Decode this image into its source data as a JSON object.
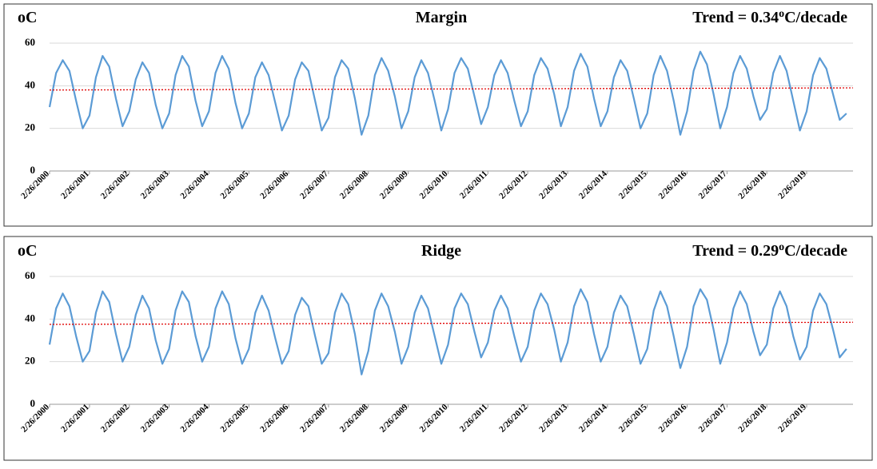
{
  "chart_data": [
    {
      "type": "line",
      "title": "Margin",
      "y_label": "oC",
      "annotation": [
        "Trend = 0.34",
        "o",
        "C/decade"
      ],
      "x": [
        "2/26/2000",
        "4/26/2000",
        "6/26/2000",
        "8/26/2000",
        "10/26/2000",
        "12/26/2000",
        "2/26/2001",
        "4/26/2001",
        "6/26/2001",
        "8/26/2001",
        "10/26/2001",
        "12/26/2001",
        "2/26/2002",
        "4/26/2002",
        "6/26/2002",
        "8/26/2002",
        "10/26/2002",
        "12/26/2002",
        "2/26/2003",
        "4/26/2003",
        "6/26/2003",
        "8/26/2003",
        "10/26/2003",
        "12/26/2003",
        "2/26/2004",
        "4/26/2004",
        "6/26/2004",
        "8/26/2004",
        "10/26/2004",
        "12/26/2004",
        "2/26/2005",
        "4/26/2005",
        "6/26/2005",
        "8/26/2005",
        "10/26/2005",
        "12/26/2005",
        "2/26/2006",
        "4/26/2006",
        "6/26/2006",
        "8/26/2006",
        "10/26/2006",
        "12/26/2006",
        "2/26/2007",
        "4/26/2007",
        "6/26/2007",
        "8/26/2007",
        "10/26/2007",
        "12/26/2007",
        "2/26/2008",
        "4/26/2008",
        "6/26/2008",
        "8/26/2008",
        "10/26/2008",
        "12/26/2008",
        "2/26/2009",
        "4/26/2009",
        "6/26/2009",
        "8/26/2009",
        "10/26/2009",
        "12/26/2009",
        "2/26/2010",
        "4/26/2010",
        "6/26/2010",
        "8/26/2010",
        "10/26/2010",
        "12/26/2010",
        "2/26/2011",
        "4/26/2011",
        "6/26/2011",
        "8/26/2011",
        "10/26/2011",
        "12/26/2011",
        "2/26/2012",
        "4/26/2012",
        "6/26/2012",
        "8/26/2012",
        "10/26/2012",
        "12/26/2012",
        "2/26/2013",
        "4/26/2013",
        "6/26/2013",
        "8/26/2013",
        "10/26/2013",
        "12/26/2013",
        "2/26/2014",
        "4/26/2014",
        "6/26/2014",
        "8/26/2014",
        "10/26/2014",
        "12/26/2014",
        "2/26/2015",
        "4/26/2015",
        "6/26/2015",
        "8/26/2015",
        "10/26/2015",
        "12/26/2015",
        "2/26/2016",
        "4/26/2016",
        "6/26/2016",
        "8/26/2016",
        "10/26/2016",
        "12/26/2016",
        "2/26/2017",
        "4/26/2017",
        "6/26/2017",
        "8/26/2017",
        "10/26/2017",
        "12/26/2017",
        "2/26/2018",
        "4/26/2018",
        "6/26/2018",
        "8/26/2018",
        "10/26/2018",
        "12/26/2018",
        "2/26/2019",
        "4/26/2019",
        "6/26/2019",
        "8/26/2019",
        "10/26/2019",
        "12/26/2019",
        "2/26/2020"
      ],
      "series": [
        {
          "color": "#5b9bd5",
          "values": [
            30,
            46,
            52,
            47,
            33,
            20,
            26,
            44,
            54,
            49,
            34,
            21,
            28,
            43,
            51,
            46,
            31,
            20,
            27,
            45,
            54,
            49,
            33,
            21,
            28,
            46,
            54,
            48,
            32,
            20,
            27,
            44,
            51,
            45,
            32,
            19,
            26,
            43,
            51,
            47,
            33,
            19,
            25,
            44,
            52,
            48,
            34,
            17,
            26,
            45,
            53,
            47,
            35,
            20,
            28,
            44,
            52,
            46,
            33,
            19,
            29,
            46,
            53,
            48,
            35,
            22,
            30,
            45,
            52,
            46,
            33,
            21,
            28,
            45,
            53,
            48,
            36,
            21,
            30,
            47,
            55,
            49,
            34,
            21,
            28,
            44,
            52,
            47,
            34,
            20,
            27,
            45,
            54,
            47,
            33,
            17,
            28,
            47,
            56,
            50,
            36,
            20,
            30,
            46,
            54,
            48,
            35,
            24,
            29,
            46,
            54,
            47,
            33,
            19,
            28,
            45,
            53,
            48,
            36,
            24,
            27
          ]
        }
      ],
      "trend": {
        "color": "#e00000",
        "values": [
          38,
          39
        ]
      },
      "xlim": [
        "2/26/2000",
        "4/26/2020"
      ],
      "xticks": [
        "2/26/2000",
        "2/26/2001",
        "2/26/2002",
        "2/26/2003",
        "2/26/2004",
        "2/26/2005",
        "2/26/2006",
        "2/26/2007",
        "2/26/2008",
        "2/26/2009",
        "2/26/2010",
        "2/26/2011",
        "2/26/2012",
        "2/26/2013",
        "2/26/2014",
        "2/26/2015",
        "2/26/2016",
        "2/26/2017",
        "2/26/2018",
        "2/26/2019"
      ],
      "ylim": [
        0,
        60
      ],
      "yticks": [
        0,
        20,
        40,
        60
      ],
      "grid": true
    },
    {
      "type": "line",
      "title": "Ridge",
      "y_label": "oC",
      "annotation": [
        "Trend = 0.29",
        "o",
        "C/decade"
      ],
      "x": [
        "2/26/2000",
        "4/26/2000",
        "6/26/2000",
        "8/26/2000",
        "10/26/2000",
        "12/26/2000",
        "2/26/2001",
        "4/26/2001",
        "6/26/2001",
        "8/26/2001",
        "10/26/2001",
        "12/26/2001",
        "2/26/2002",
        "4/26/2002",
        "6/26/2002",
        "8/26/2002",
        "10/26/2002",
        "12/26/2002",
        "2/26/2003",
        "4/26/2003",
        "6/26/2003",
        "8/26/2003",
        "10/26/2003",
        "12/26/2003",
        "2/26/2004",
        "4/26/2004",
        "6/26/2004",
        "8/26/2004",
        "10/26/2004",
        "12/26/2004",
        "2/26/2005",
        "4/26/2005",
        "6/26/2005",
        "8/26/2005",
        "10/26/2005",
        "12/26/2005",
        "2/26/2006",
        "4/26/2006",
        "6/26/2006",
        "8/26/2006",
        "10/26/2006",
        "12/26/2006",
        "2/26/2007",
        "4/26/2007",
        "6/26/2007",
        "8/26/2007",
        "10/26/2007",
        "12/26/2007",
        "2/26/2008",
        "4/26/2008",
        "6/26/2008",
        "8/26/2008",
        "10/26/2008",
        "12/26/2008",
        "2/26/2009",
        "4/26/2009",
        "6/26/2009",
        "8/26/2009",
        "10/26/2009",
        "12/26/2009",
        "2/26/2010",
        "4/26/2010",
        "6/26/2010",
        "8/26/2010",
        "10/26/2010",
        "12/26/2010",
        "2/26/2011",
        "4/26/2011",
        "6/26/2011",
        "8/26/2011",
        "10/26/2011",
        "12/26/2011",
        "2/26/2012",
        "4/26/2012",
        "6/26/2012",
        "8/26/2012",
        "10/26/2012",
        "12/26/2012",
        "2/26/2013",
        "4/26/2013",
        "6/26/2013",
        "8/26/2013",
        "10/26/2013",
        "12/26/2013",
        "2/26/2014",
        "4/26/2014",
        "6/26/2014",
        "8/26/2014",
        "10/26/2014",
        "12/26/2014",
        "2/26/2015",
        "4/26/2015",
        "6/26/2015",
        "8/26/2015",
        "10/26/2015",
        "12/26/2015",
        "2/26/2016",
        "4/26/2016",
        "6/26/2016",
        "8/26/2016",
        "10/26/2016",
        "12/26/2016",
        "2/26/2017",
        "4/26/2017",
        "6/26/2017",
        "8/26/2017",
        "10/26/2017",
        "12/26/2017",
        "2/26/2018",
        "4/26/2018",
        "6/26/2018",
        "8/26/2018",
        "10/26/2018",
        "12/26/2018",
        "2/26/2019",
        "4/26/2019",
        "6/26/2019",
        "8/26/2019",
        "10/26/2019",
        "12/26/2019",
        "2/26/2020"
      ],
      "series": [
        {
          "color": "#5b9bd5",
          "values": [
            28,
            45,
            52,
            46,
            32,
            20,
            25,
            43,
            53,
            48,
            33,
            20,
            27,
            42,
            51,
            45,
            30,
            19,
            26,
            44,
            53,
            48,
            32,
            20,
            27,
            45,
            53,
            47,
            31,
            19,
            26,
            43,
            51,
            44,
            31,
            19,
            25,
            42,
            50,
            46,
            32,
            19,
            24,
            43,
            52,
            47,
            33,
            14,
            25,
            44,
            52,
            46,
            34,
            19,
            27,
            43,
            51,
            45,
            32,
            19,
            28,
            45,
            52,
            47,
            34,
            22,
            29,
            44,
            51,
            45,
            32,
            20,
            27,
            44,
            52,
            47,
            35,
            20,
            29,
            46,
            54,
            48,
            33,
            20,
            27,
            43,
            51,
            46,
            33,
            19,
            26,
            44,
            53,
            46,
            32,
            17,
            27,
            46,
            54,
            49,
            35,
            19,
            29,
            45,
            53,
            47,
            34,
            23,
            28,
            45,
            53,
            46,
            32,
            21,
            27,
            44,
            52,
            47,
            35,
            22,
            26
          ]
        }
      ],
      "trend": {
        "color": "#e00000",
        "values": [
          37.5,
          38.5
        ]
      },
      "xlim": [
        "2/26/2000",
        "4/26/2020"
      ],
      "xticks": [
        "2/26/2000",
        "2/26/2001",
        "2/26/2002",
        "2/26/2003",
        "2/26/2004",
        "2/26/2005",
        "2/26/2006",
        "2/26/2007",
        "2/26/2008",
        "2/26/2009",
        "2/26/2010",
        "2/26/2011",
        "2/26/2012",
        "2/26/2013",
        "2/26/2014",
        "2/26/2015",
        "2/26/2016",
        "2/26/2017",
        "2/26/2018",
        "2/26/2019"
      ],
      "ylim": [
        0,
        60
      ],
      "yticks": [
        0,
        20,
        40,
        60
      ],
      "grid": true
    }
  ]
}
